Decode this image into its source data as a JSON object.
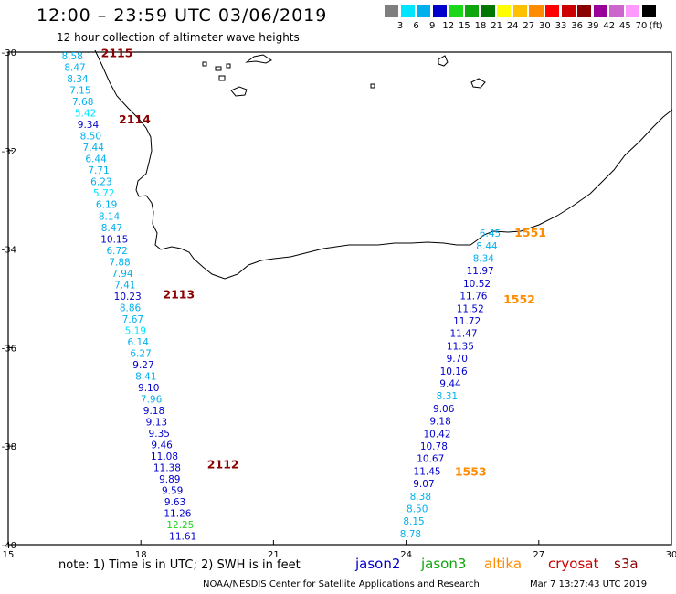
{
  "title": "12:00 – 23:59 UTC 03/06/2019",
  "subtitle": "12 hour collection of altimeter wave heights",
  "legend": {
    "unit": "(ft)",
    "colors": [
      "#7f7f7f",
      "#00e5ff",
      "#00b0ee",
      "#0000cc",
      "#1ad71a",
      "#0da70d",
      "#007700",
      "#ffff00",
      "#ffc000",
      "#ff8c00",
      "#ff0000",
      "#cc0000",
      "#8b0000",
      "#990099",
      "#cc66cc",
      "#ff99ff",
      "#000000"
    ],
    "labels": [
      "3",
      "6",
      "9",
      "12",
      "15",
      "18",
      "21",
      "24",
      "27",
      "30",
      "33",
      "36",
      "39",
      "42",
      "45",
      "70"
    ]
  },
  "axes": {
    "x_ticks": [
      "15",
      "18",
      "21",
      "24",
      "27",
      "30"
    ],
    "y_ticks": [
      "-30",
      "-32",
      "-34",
      "-36",
      "-38",
      "-40"
    ],
    "lon_range": [
      15,
      30
    ],
    "lat_range": [
      -40,
      -30
    ]
  },
  "satellite_colors": {
    "jason2": "#0000cc",
    "jason3": "#0da70d",
    "altika": "#ff8c00",
    "cryosat": "#cc0000",
    "s3a": "#8b0000"
  },
  "tracks": [
    {
      "satellite": "s3a",
      "labels": [
        {
          "text": "2115",
          "lon": 17.1,
          "lat": -30.1
        },
        {
          "text": "2114",
          "lon": 17.5,
          "lat": -31.45
        },
        {
          "text": "2113",
          "lon": 18.5,
          "lat": -35.0
        },
        {
          "text": "2112",
          "lon": 19.5,
          "lat": -38.45
        }
      ],
      "points": [
        {
          "v": "8.58",
          "c": "#00b0ee"
        },
        {
          "v": "8.47",
          "c": "#00b0ee"
        },
        {
          "v": "8.34",
          "c": "#00b0ee"
        },
        {
          "v": "7.15",
          "c": "#00b0ee"
        },
        {
          "v": "7.68",
          "c": "#00b0ee"
        },
        {
          "v": "5.42",
          "c": "#00e5ff"
        },
        {
          "v": "9.34",
          "c": "#0000cc"
        },
        {
          "v": "8.50",
          "c": "#00b0ee"
        },
        {
          "v": "7.44",
          "c": "#00b0ee"
        },
        {
          "v": "6.44",
          "c": "#00b0ee"
        },
        {
          "v": "7.71",
          "c": "#00b0ee"
        },
        {
          "v": "6.23",
          "c": "#00b0ee"
        },
        {
          "v": "5.72",
          "c": "#00e5ff"
        },
        {
          "v": "6.19",
          "c": "#00b0ee"
        },
        {
          "v": "8.14",
          "c": "#00b0ee"
        },
        {
          "v": "8.47",
          "c": "#00b0ee"
        },
        {
          "v": "10.15",
          "c": "#0000cc"
        },
        {
          "v": "6.72",
          "c": "#00b0ee"
        },
        {
          "v": "7.88",
          "c": "#00b0ee"
        },
        {
          "v": "7.94",
          "c": "#00b0ee"
        },
        {
          "v": "7.41",
          "c": "#00b0ee"
        },
        {
          "v": "10.23",
          "c": "#0000cc"
        },
        {
          "v": "8.86",
          "c": "#00b0ee"
        },
        {
          "v": "7.67",
          "c": "#00b0ee"
        },
        {
          "v": "5.19",
          "c": "#00e5ff"
        },
        {
          "v": "6.14",
          "c": "#00b0ee"
        },
        {
          "v": "6.27",
          "c": "#00b0ee"
        },
        {
          "v": "9.27",
          "c": "#0000cc"
        },
        {
          "v": "8.41",
          "c": "#00b0ee"
        },
        {
          "v": "9.10",
          "c": "#0000cc"
        },
        {
          "v": "7.96",
          "c": "#00b0ee"
        },
        {
          "v": "9.18",
          "c": "#0000cc"
        },
        {
          "v": "9.13",
          "c": "#0000cc"
        },
        {
          "v": "9.35",
          "c": "#0000cc"
        },
        {
          "v": "9.46",
          "c": "#0000cc"
        },
        {
          "v": "11.08",
          "c": "#0000cc"
        },
        {
          "v": "11.38",
          "c": "#0000cc"
        },
        {
          "v": "9.89",
          "c": "#0000cc"
        },
        {
          "v": "9.59",
          "c": "#0000cc"
        },
        {
          "v": "9.63",
          "c": "#0000cc"
        },
        {
          "v": "11.26",
          "c": "#0000cc"
        },
        {
          "v": "12.25",
          "c": "#1ad71a"
        },
        {
          "v": "11.61",
          "c": "#0000cc"
        }
      ]
    },
    {
      "satellite": "altika",
      "labels": [
        {
          "text": "1551",
          "lon": 26.45,
          "lat": -33.75
        },
        {
          "text": "1552",
          "lon": 26.2,
          "lat": -35.1
        },
        {
          "text": "1553",
          "lon": 25.1,
          "lat": -38.6
        }
      ],
      "points": [
        {
          "v": "6.45",
          "c": "#00b0ee"
        },
        {
          "v": "8.44",
          "c": "#00b0ee"
        },
        {
          "v": "8.34",
          "c": "#00b0ee"
        },
        {
          "v": "11.97",
          "c": "#0000cc"
        },
        {
          "v": "10.52",
          "c": "#0000cc"
        },
        {
          "v": "11.76",
          "c": "#0000cc"
        },
        {
          "v": "11.52",
          "c": "#0000cc"
        },
        {
          "v": "11.72",
          "c": "#0000cc"
        },
        {
          "v": "11.47",
          "c": "#0000cc"
        },
        {
          "v": "11.35",
          "c": "#0000cc"
        },
        {
          "v": "9.70",
          "c": "#0000cc"
        },
        {
          "v": "10.16",
          "c": "#0000cc"
        },
        {
          "v": "9.44",
          "c": "#0000cc"
        },
        {
          "v": "8.31",
          "c": "#00b0ee"
        },
        {
          "v": "9.06",
          "c": "#0000cc"
        },
        {
          "v": "9.18",
          "c": "#0000cc"
        },
        {
          "v": "10.42",
          "c": "#0000cc"
        },
        {
          "v": "10.78",
          "c": "#0000cc"
        },
        {
          "v": "10.67",
          "c": "#0000cc"
        },
        {
          "v": "11.45",
          "c": "#0000cc"
        },
        {
          "v": "9.07",
          "c": "#0000cc"
        },
        {
          "v": "8.38",
          "c": "#00b0ee"
        },
        {
          "v": "8.50",
          "c": "#00b0ee"
        },
        {
          "v": "8.15",
          "c": "#00b0ee"
        },
        {
          "v": "8.78",
          "c": "#00b0ee"
        }
      ]
    }
  ],
  "footer": {
    "note": "note: 1) Time is in UTC; 2) SWH is in feet",
    "satellites": [
      "jason2",
      "jason3",
      "altika",
      "cryosat",
      "s3a"
    ],
    "credit": "NOAA/NESDIS Center for Satellite Applications and Research",
    "timestamp": "Mar  7 13:27:43 UTC 2019"
  }
}
